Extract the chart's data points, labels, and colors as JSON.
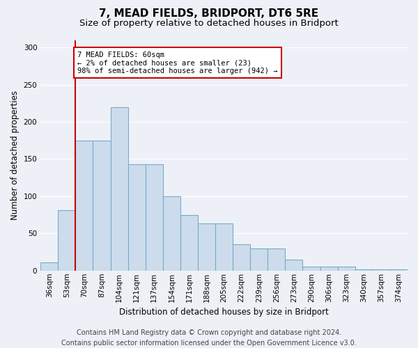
{
  "title": "7, MEAD FIELDS, BRIDPORT, DT6 5RE",
  "subtitle": "Size of property relative to detached houses in Bridport",
  "xlabel": "Distribution of detached houses by size in Bridport",
  "ylabel": "Number of detached properties",
  "categories": [
    "36sqm",
    "53sqm",
    "70sqm",
    "87sqm",
    "104sqm",
    "121sqm",
    "137sqm",
    "154sqm",
    "171sqm",
    "188sqm",
    "205sqm",
    "222sqm",
    "239sqm",
    "256sqm",
    "273sqm",
    "290sqm",
    "306sqm",
    "323sqm",
    "340sqm",
    "357sqm",
    "374sqm"
  ],
  "values": [
    11,
    81,
    175,
    175,
    220,
    143,
    143,
    100,
    75,
    63,
    63,
    35,
    30,
    30,
    15,
    5,
    5,
    5,
    2,
    2,
    2
  ],
  "bar_color": "#ccdcec",
  "bar_edge_color": "#7aaaca",
  "vline_x": 1.5,
  "vline_color": "#cc0000",
  "annotation_text": "7 MEAD FIELDS: 60sqm\n← 2% of detached houses are smaller (23)\n98% of semi-detached houses are larger (942) →",
  "annotation_box_color": "white",
  "annotation_box_edge": "#cc0000",
  "ylim": [
    0,
    310
  ],
  "yticks": [
    0,
    50,
    100,
    150,
    200,
    250,
    300
  ],
  "footer_line1": "Contains HM Land Registry data © Crown copyright and database right 2024.",
  "footer_line2": "Contains public sector information licensed under the Open Government Licence v3.0.",
  "bg_color": "#edf1f7",
  "grid_color": "#ffffff",
  "title_fontsize": 11,
  "subtitle_fontsize": 9.5,
  "ylabel_fontsize": 8.5,
  "xlabel_fontsize": 8.5,
  "tick_fontsize": 7.5,
  "annot_fontsize": 7.5,
  "footer_fontsize": 7
}
